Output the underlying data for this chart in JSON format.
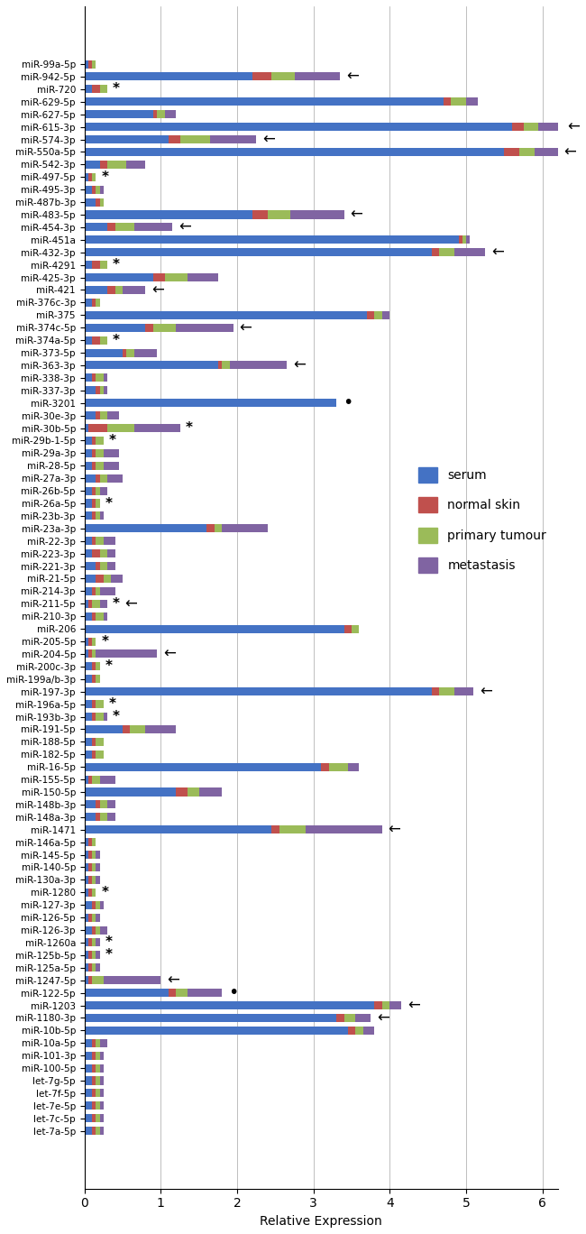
{
  "categories": [
    "miR-99a-5p",
    "miR-942-5p",
    "miR-720",
    "miR-629-5p",
    "miR-627-5p",
    "miR-615-3p",
    "miR-574-3p",
    "miR-550a-5p",
    "miR-542-3p",
    "miR-497-5p",
    "miR-495-3p",
    "miR-487b-3p",
    "miR-483-5p",
    "miR-454-3p",
    "miR-451a",
    "miR-432-3p",
    "miR-4291",
    "miR-425-3p",
    "miR-421",
    "miR-376c-3p",
    "miR-375",
    "miR-374c-5p",
    "miR-374a-5p",
    "miR-373-5p",
    "miR-363-3p",
    "miR-338-3p",
    "miR-337-3p",
    "miR-3201",
    "miR-30e-3p",
    "miR-30b-5p",
    "miR-29b-1-5p",
    "miR-29a-3p",
    "miR-28-5p",
    "miR-27a-3p",
    "miR-26b-5p",
    "miR-26a-5p",
    "miR-23b-3p",
    "miR-23a-3p",
    "miR-22-3p",
    "miR-223-3p",
    "miR-221-3p",
    "miR-21-5p",
    "miR-214-3p",
    "miR-211-5p",
    "miR-210-3p",
    "miR-206",
    "miR-205-5p",
    "miR-204-5p",
    "miR-200c-3p",
    "miR-199a/b-3p",
    "miR-197-3p",
    "miR-196a-5p",
    "miR-193b-3p",
    "miR-191-5p",
    "miR-188-5p",
    "miR-182-5p",
    "miR-16-5p",
    "miR-155-5p",
    "miR-150-5p",
    "miR-148b-3p",
    "miR-148a-3p",
    "miR-1471",
    "miR-146a-5p",
    "miR-145-5p",
    "miR-140-5p",
    "miR-130a-3p",
    "miR-1280",
    "miR-127-3p",
    "miR-126-5p",
    "miR-126-3p",
    "miR-1260a",
    "miR-125b-5p",
    "miR-125a-5p",
    "miR-1247-5p",
    "miR-122-5p",
    "miR-1203",
    "miR-1180-3p",
    "miR-10b-5p",
    "miR-10a-5p",
    "miR-101-3p",
    "miR-100-5p",
    "let-7g-5p",
    "let-7f-5p",
    "let-7e-5p",
    "let-7c-5p",
    "let-7a-5p"
  ],
  "serum": [
    0.05,
    2.2,
    0.1,
    4.7,
    0.9,
    5.6,
    1.1,
    5.5,
    0.2,
    0.05,
    0.1,
    0.15,
    2.2,
    0.3,
    4.9,
    4.55,
    0.1,
    0.9,
    0.3,
    0.1,
    3.7,
    0.8,
    0.1,
    0.5,
    1.75,
    0.1,
    0.15,
    3.3,
    0.15,
    0.05,
    0.1,
    0.1,
    0.1,
    0.15,
    0.1,
    0.1,
    0.1,
    1.6,
    0.1,
    0.1,
    0.15,
    0.15,
    0.1,
    0.05,
    0.1,
    3.4,
    0.05,
    0.05,
    0.1,
    0.1,
    4.55,
    0.1,
    0.1,
    0.5,
    0.1,
    0.1,
    3.1,
    0.05,
    1.2,
    0.15,
    0.15,
    2.45,
    0.05,
    0.05,
    0.05,
    0.05,
    0.05,
    0.1,
    0.05,
    0.1,
    0.05,
    0.05,
    0.05,
    0.05,
    1.1,
    3.8,
    3.3,
    3.45,
    0.1,
    0.1,
    0.1,
    0.1,
    0.1,
    0.1,
    0.1,
    0.1
  ],
  "normal_skin": [
    0.05,
    0.25,
    0.1,
    0.1,
    0.05,
    0.15,
    0.15,
    0.2,
    0.1,
    0.05,
    0.05,
    0.05,
    0.2,
    0.1,
    0.05,
    0.1,
    0.1,
    0.15,
    0.1,
    0.05,
    0.1,
    0.1,
    0.1,
    0.05,
    0.05,
    0.05,
    0.05,
    0.0,
    0.05,
    0.25,
    0.05,
    0.05,
    0.05,
    0.05,
    0.05,
    0.05,
    0.05,
    0.1,
    0.05,
    0.1,
    0.05,
    0.1,
    0.05,
    0.05,
    0.05,
    0.1,
    0.05,
    0.05,
    0.05,
    0.05,
    0.1,
    0.05,
    0.05,
    0.1,
    0.05,
    0.05,
    0.1,
    0.05,
    0.15,
    0.05,
    0.05,
    0.1,
    0.05,
    0.05,
    0.05,
    0.05,
    0.05,
    0.05,
    0.05,
    0.05,
    0.05,
    0.05,
    0.05,
    0.05,
    0.1,
    0.1,
    0.1,
    0.1,
    0.05,
    0.05,
    0.05,
    0.05,
    0.05,
    0.05,
    0.05,
    0.05
  ],
  "primary_tumour": [
    0.05,
    0.3,
    0.1,
    0.2,
    0.1,
    0.2,
    0.4,
    0.2,
    0.25,
    0.05,
    0.05,
    0.05,
    0.3,
    0.25,
    0.05,
    0.2,
    0.1,
    0.3,
    0.1,
    0.05,
    0.1,
    0.3,
    0.1,
    0.1,
    0.1,
    0.1,
    0.05,
    0.0,
    0.1,
    0.35,
    0.1,
    0.1,
    0.1,
    0.1,
    0.05,
    0.05,
    0.05,
    0.1,
    0.1,
    0.1,
    0.1,
    0.1,
    0.05,
    0.1,
    0.1,
    0.1,
    0.05,
    0.05,
    0.05,
    0.05,
    0.2,
    0.1,
    0.1,
    0.2,
    0.1,
    0.1,
    0.25,
    0.1,
    0.15,
    0.1,
    0.1,
    0.35,
    0.05,
    0.05,
    0.05,
    0.05,
    0.05,
    0.05,
    0.05,
    0.05,
    0.05,
    0.05,
    0.05,
    0.15,
    0.15,
    0.1,
    0.15,
    0.1,
    0.05,
    0.05,
    0.05,
    0.05,
    0.05,
    0.05,
    0.05,
    0.05
  ],
  "metastasis": [
    0.0,
    0.6,
    0.0,
    0.15,
    0.15,
    0.3,
    0.6,
    0.3,
    0.25,
    0.0,
    0.05,
    0.0,
    0.7,
    0.5,
    0.05,
    0.4,
    0.0,
    0.4,
    0.3,
    0.0,
    0.1,
    0.75,
    0.0,
    0.3,
    0.75,
    0.05,
    0.05,
    0.0,
    0.15,
    0.6,
    0.0,
    0.2,
    0.2,
    0.2,
    0.1,
    0.0,
    0.05,
    0.6,
    0.15,
    0.1,
    0.1,
    0.15,
    0.2,
    0.1,
    0.05,
    0.0,
    0.0,
    0.8,
    0.0,
    0.0,
    0.25,
    0.0,
    0.05,
    0.4,
    0.0,
    0.0,
    0.15,
    0.2,
    0.3,
    0.1,
    0.1,
    1.0,
    0.0,
    0.05,
    0.05,
    0.05,
    0.0,
    0.05,
    0.05,
    0.1,
    0.05,
    0.05,
    0.05,
    0.75,
    0.45,
    0.15,
    0.2,
    0.15,
    0.1,
    0.05,
    0.05,
    0.05,
    0.05,
    0.05,
    0.05,
    0.05
  ],
  "annotations": [
    {
      "name": "miR-942-5p",
      "type": "arrow"
    },
    {
      "name": "miR-720",
      "type": "star"
    },
    {
      "name": "miR-615-3p",
      "type": "arrow"
    },
    {
      "name": "miR-574-3p",
      "type": "arrow"
    },
    {
      "name": "miR-550a-5p",
      "type": "arrow"
    },
    {
      "name": "miR-497-5p",
      "type": "star"
    },
    {
      "name": "miR-483-5p",
      "type": "arrow"
    },
    {
      "name": "miR-454-3p",
      "type": "arrow"
    },
    {
      "name": "miR-432-3p",
      "type": "arrow"
    },
    {
      "name": "miR-4291",
      "type": "star"
    },
    {
      "name": "miR-421",
      "type": "arrow"
    },
    {
      "name": "miR-374c-5p",
      "type": "arrow"
    },
    {
      "name": "miR-374a-5p",
      "type": "star"
    },
    {
      "name": "miR-363-3p",
      "type": "arrow"
    },
    {
      "name": "miR-3201",
      "type": "dot"
    },
    {
      "name": "miR-30b-5p",
      "type": "star"
    },
    {
      "name": "miR-29b-1-5p",
      "type": "star"
    },
    {
      "name": "miR-26a-5p",
      "type": "star"
    },
    {
      "name": "miR-211-5p",
      "type": "both"
    },
    {
      "name": "miR-205-5p",
      "type": "star"
    },
    {
      "name": "miR-204-5p",
      "type": "arrow"
    },
    {
      "name": "miR-200c-3p",
      "type": "star"
    },
    {
      "name": "miR-197-3p",
      "type": "arrow"
    },
    {
      "name": "miR-196a-5p",
      "type": "star"
    },
    {
      "name": "miR-193b-3p",
      "type": "star"
    },
    {
      "name": "miR-1471",
      "type": "arrow"
    },
    {
      "name": "miR-1280",
      "type": "star"
    },
    {
      "name": "miR-1260a",
      "type": "star"
    },
    {
      "name": "miR-125b-5p",
      "type": "star"
    },
    {
      "name": "miR-1247-5p",
      "type": "arrow"
    },
    {
      "name": "miR-122-5p",
      "type": "dot"
    },
    {
      "name": "miR-1203",
      "type": "arrow"
    },
    {
      "name": "miR-1180-3p",
      "type": "arrow"
    }
  ],
  "colors": {
    "serum": "#4472C4",
    "normal_skin": "#C0504D",
    "primary_tumour": "#9BBB59",
    "metastasis": "#8064A2"
  },
  "xlim": [
    0,
    6.2
  ],
  "xticks": [
    0,
    1,
    2,
    3,
    4,
    5,
    6
  ],
  "xlabel": "Relative Expression",
  "figsize": [
    6.5,
    13.68
  ],
  "dpi": 100
}
